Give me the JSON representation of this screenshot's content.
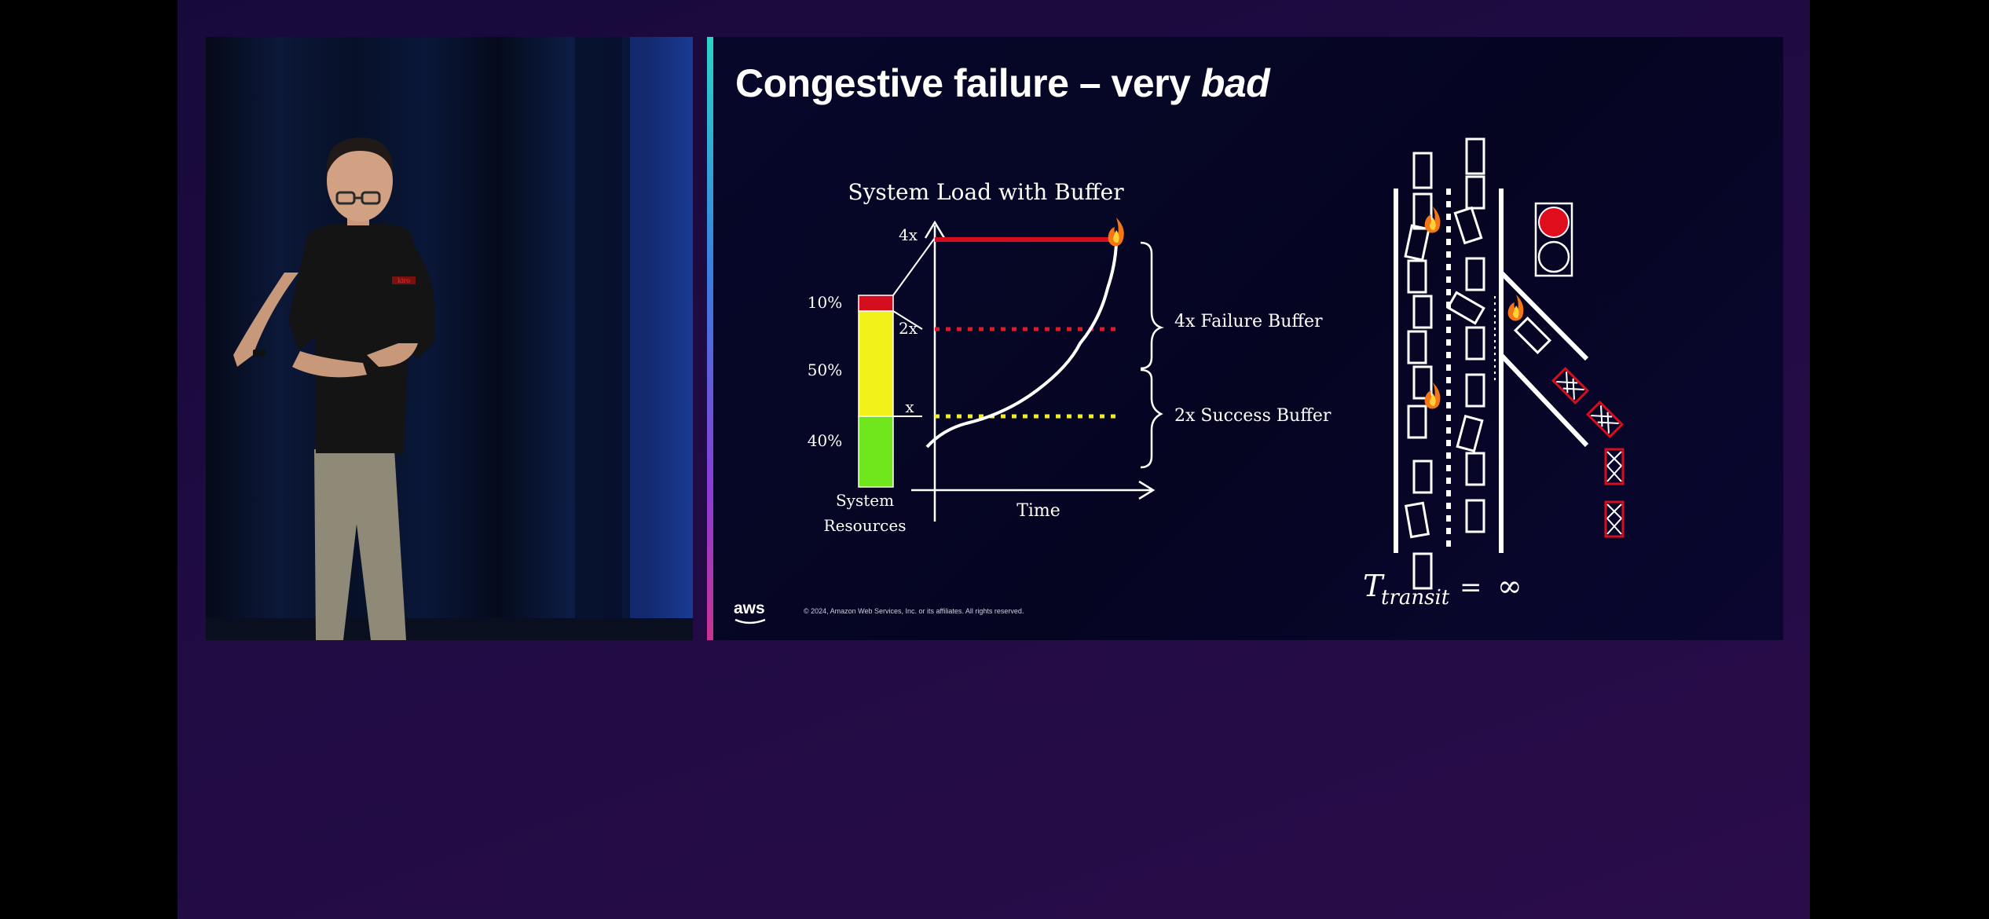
{
  "slide": {
    "title_plain": "Congestive failure – very ",
    "title_emphasis": "bad",
    "chart": {
      "title": "System Load with Buffer",
      "y_ticks": [
        "4x",
        "2x",
        "x"
      ],
      "resource_labels": [
        "10%",
        "50%",
        "40%"
      ],
      "resource_axis_label_line1": "System",
      "resource_axis_label_line2": "Resources",
      "x_axis_label": "Time",
      "brace_labels": [
        "4x Failure Buffer",
        "2x Success Buffer"
      ],
      "colors": {
        "red": "#d40e1e",
        "yellow": "#f2f21a",
        "green": "#6fe71c",
        "dotted_red": "#e01a22",
        "dotted_yellow": "#f0ec25"
      }
    },
    "formula": {
      "symbol": "T",
      "subscript": "transit",
      "equals": "=",
      "value": "∞"
    },
    "footer": {
      "logo": "aws",
      "copyright": "© 2024, Amazon Web Services, Inc. or its affiliates. All rights reserved."
    }
  },
  "speaker": {
    "shirt_logo": "kiro"
  },
  "colors": {
    "background": "#1f0b42",
    "slide_bg": "#07072a",
    "traffic_light_red": "#e00e1d"
  }
}
